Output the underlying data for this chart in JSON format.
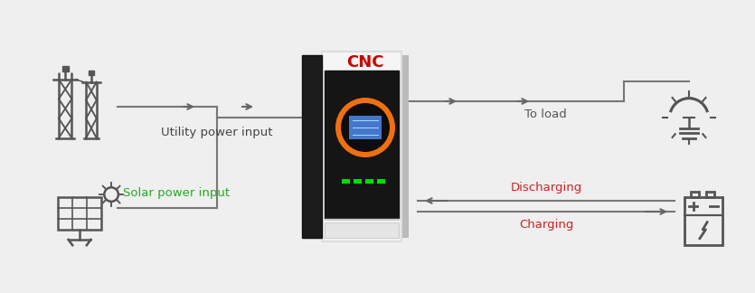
{
  "bg_color": "#efefef",
  "icon_color": "#555555",
  "arrow_color": "#666666",
  "utility_label": "Utility power input",
  "solar_label": "Solar power input",
  "solar_label_color": "#22aa22",
  "load_label": "To load",
  "load_label_color": "#555555",
  "discharging_label": "Discharging",
  "charging_label": "Charging",
  "red_label_color": "#cc2222",
  "cnc_label": "CNC",
  "cnc_label_color": "#cc0000",
  "inverter_white": "#f5f5f5",
  "inverter_black": "#1a1a1a",
  "inverter_orange": "#f07010",
  "inverter_screen_color": "#4477cc",
  "inverter_led": "#00cc00",
  "line_color": "#777777"
}
